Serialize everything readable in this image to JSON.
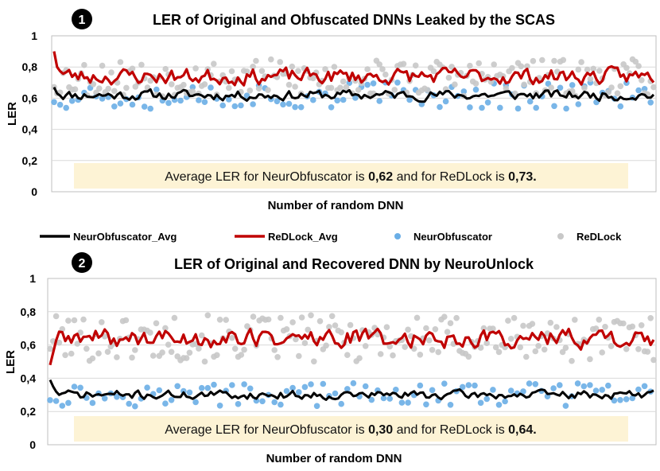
{
  "legend": {
    "items": [
      {
        "label": "NeurObfuscator_Avg",
        "kind": "line",
        "color": "#000000"
      },
      {
        "label": "ReDLock_Avg",
        "kind": "line",
        "color": "#c00000"
      },
      {
        "label": "NeurObfuscator",
        "kind": "dot",
        "color": "#5b9bd5"
      },
      {
        "label": "ReDLock",
        "kind": "dot",
        "color": "#c0c0c0"
      }
    ]
  },
  "colors": {
    "neur_avg": "#000000",
    "redlock_avg": "#c00000",
    "neur_dot": "#6aaee6",
    "redlock_dot": "#c8c8c8",
    "note_bg": "#fdf3d5",
    "grid": "#d9d9d9"
  },
  "chart_data": [
    {
      "type": "line",
      "badge": "1",
      "title": "LER of Original and Obfuscated DNNs Leaked by the SCAS",
      "xlabel": "Number of random DNN",
      "ylabel": "LER",
      "ylim": [
        0,
        1
      ],
      "yticks": [
        "0",
        "0,2",
        "0,4",
        "0,6",
        "0,8",
        "1"
      ],
      "grid": true,
      "n_points": 200,
      "note": {
        "prefix": "Average LER for NeurObfuscator is ",
        "v1": "0,62",
        "middle": " and for ReDLock is ",
        "v2": "0,73."
      },
      "series": [
        {
          "name": "NeurObfuscator_Avg",
          "kind": "line",
          "mean": 0.62,
          "amp": 0.05,
          "seed": 11,
          "start": 0.67
        },
        {
          "name": "ReDLock_Avg",
          "kind": "line",
          "mean": 0.74,
          "amp": 0.08,
          "seed": 23,
          "start": 0.9
        },
        {
          "name": "NeurObfuscator",
          "kind": "scatter",
          "mean": 0.62,
          "amp": 0.09,
          "seed": 37
        },
        {
          "name": "ReDLock",
          "kind": "scatter",
          "mean": 0.73,
          "amp": 0.12,
          "seed": 53
        }
      ]
    },
    {
      "type": "line",
      "badge": "2",
      "title": "LER of Original and Recovered DNN by NeuroUnlock",
      "xlabel": "Number of random DNN",
      "ylabel": "LER",
      "ylim": [
        0,
        1
      ],
      "yticks": [
        "0",
        "0,2",
        "0,4",
        "0,6",
        "0,8",
        "1"
      ],
      "grid": true,
      "n_points": 200,
      "note": {
        "prefix": "Average LER for NeurObfuscator is ",
        "v1": "0,30",
        "middle": " and for ReDLock is ",
        "v2": "0,64."
      },
      "series": [
        {
          "name": "NeurObfuscator_Avg",
          "kind": "line",
          "mean": 0.3,
          "amp": 0.04,
          "seed": 71,
          "start": 0.39
        },
        {
          "name": "ReDLock_Avg",
          "kind": "line",
          "mean": 0.64,
          "amp": 0.09,
          "seed": 89,
          "start": 0.48
        },
        {
          "name": "NeurObfuscator",
          "kind": "scatter",
          "mean": 0.3,
          "amp": 0.07,
          "seed": 97
        },
        {
          "name": "ReDLock",
          "kind": "scatter",
          "mean": 0.64,
          "amp": 0.14,
          "seed": 101
        }
      ]
    }
  ]
}
